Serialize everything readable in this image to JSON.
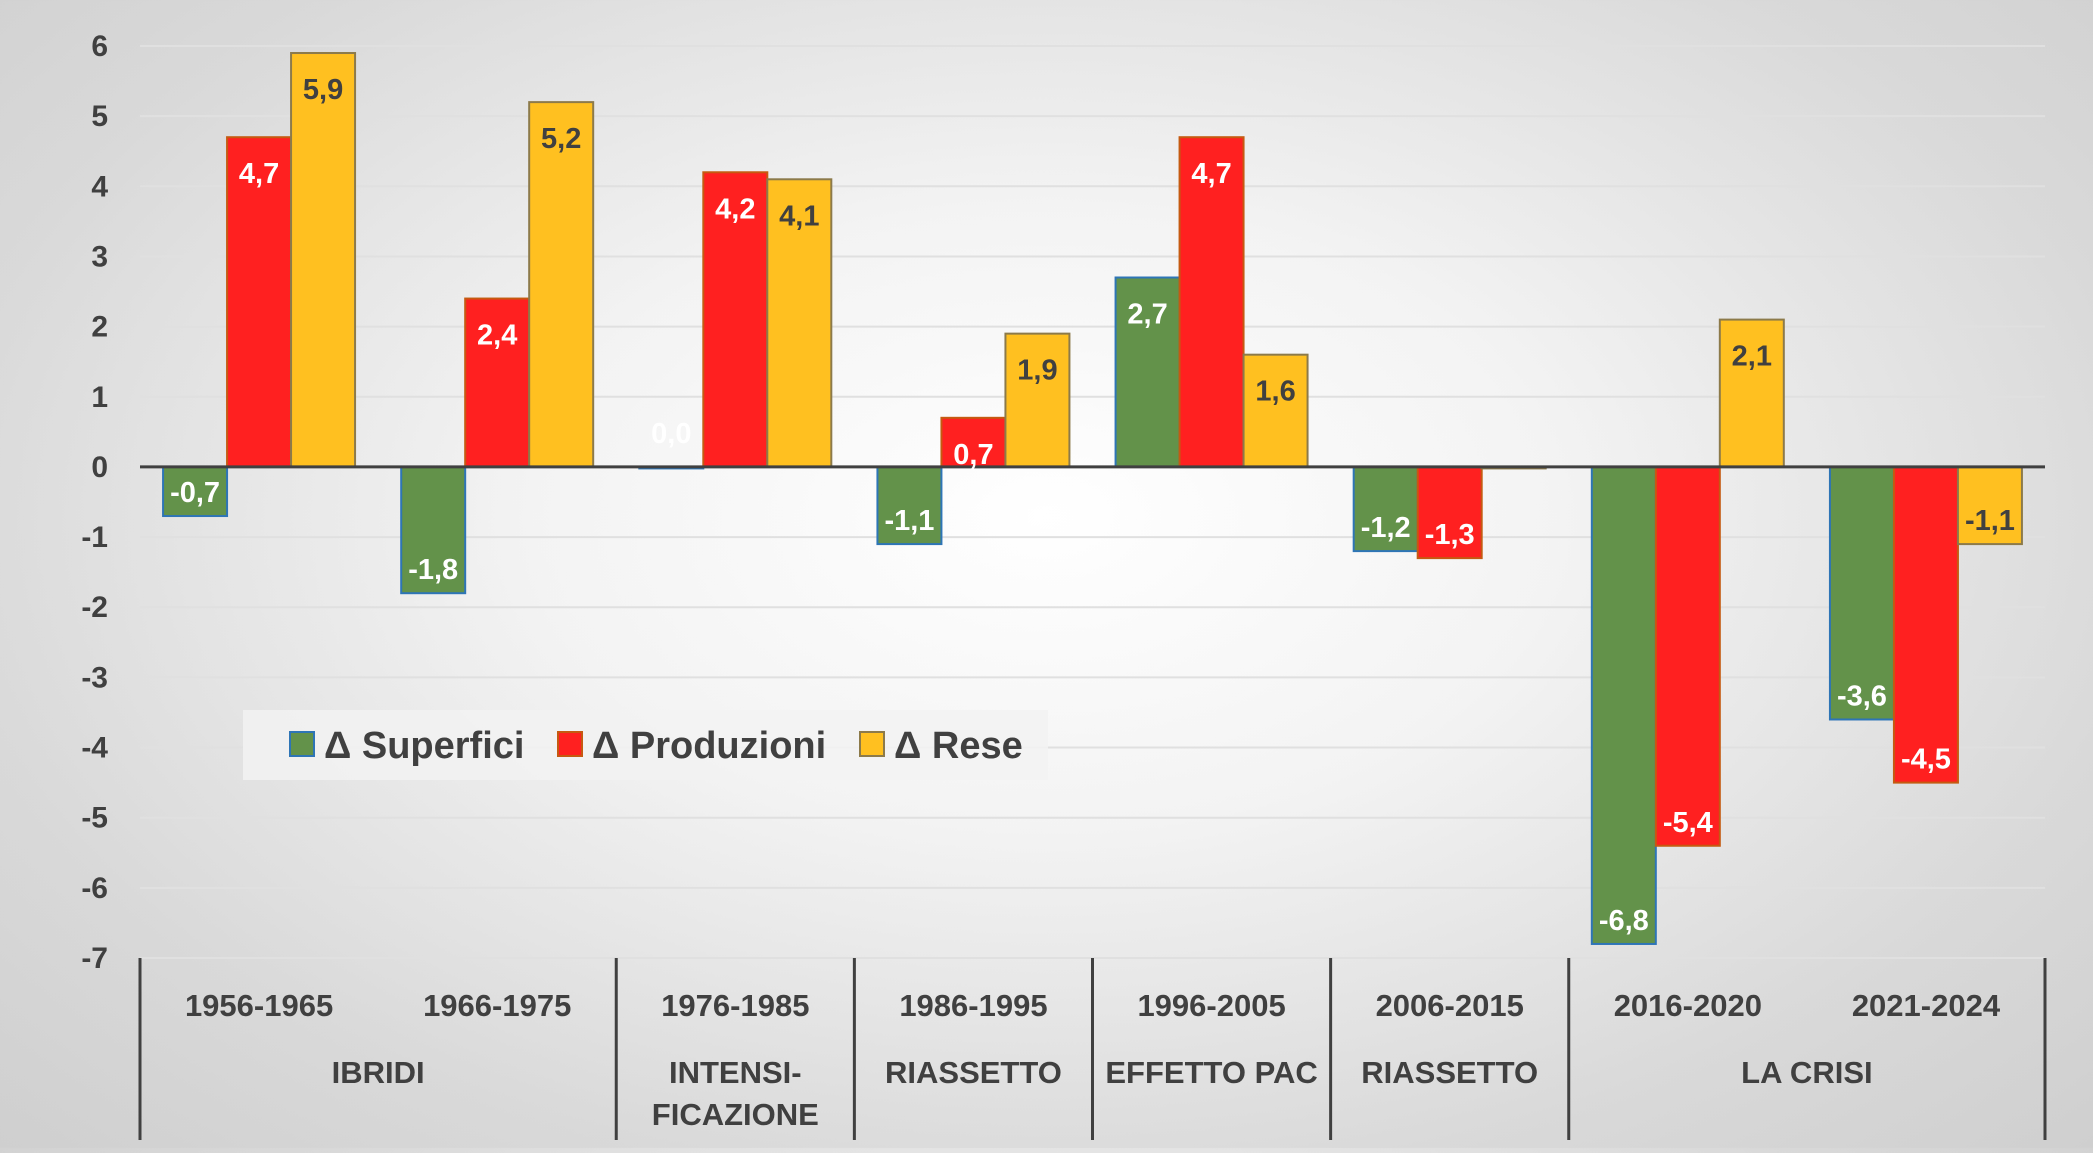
{
  "chart_data": {
    "type": "bar",
    "categories": [
      "1956-1965",
      "1966-1975",
      "1976-1985",
      "1986-1995",
      "1996-2005",
      "2006-2015",
      "2016-2020",
      "2021-2024"
    ],
    "groups": [
      {
        "label": "IBRIDI",
        "span": [
          0,
          1
        ]
      },
      {
        "label": "INTENSI-",
        "label2": "FICAZIONE",
        "span": [
          2,
          2
        ]
      },
      {
        "label": "RIASSETTO",
        "span": [
          3,
          3
        ]
      },
      {
        "label": "EFFETTO PAC",
        "span": [
          4,
          4
        ]
      },
      {
        "label": "RIASSETTO",
        "span": [
          5,
          5
        ]
      },
      {
        "label": "LA CRISI",
        "span": [
          6,
          7
        ]
      }
    ],
    "series": [
      {
        "name": "Δ Superfici",
        "color": "#63924a",
        "values": [
          -0.7,
          -1.8,
          0.0,
          -1.1,
          2.7,
          -1.2,
          -6.8,
          -3.6
        ],
        "labels": [
          "-0,7",
          "-1,8",
          "0,0",
          "-1,1",
          "2,7",
          "-1,2",
          "-6,8",
          "-3,6"
        ]
      },
      {
        "name": "Δ Produzioni",
        "color": "#ff2020",
        "values": [
          4.7,
          2.4,
          4.2,
          0.7,
          4.7,
          -1.3,
          -5.4,
          -4.5
        ],
        "labels": [
          "4,7",
          "2,4",
          "4,2",
          "0,7",
          "4,7",
          "-1,3",
          "-5,4",
          "-4,5"
        ]
      },
      {
        "name": "Δ Rese",
        "color": "#ffc020",
        "values": [
          5.9,
          5.2,
          4.1,
          1.9,
          1.6,
          0.0,
          2.1,
          -1.1
        ],
        "labels": [
          "5,9",
          "5,2",
          "4,1",
          "1,9",
          "1,6",
          "",
          "2,1",
          "-1,1"
        ]
      }
    ],
    "yticks": [
      "6",
      "5",
      "4",
      "3",
      "2",
      "1",
      "0",
      "-1",
      "-2",
      "-3",
      "-4",
      "-5",
      "-6",
      "-7"
    ],
    "ylim": [
      -7,
      6
    ],
    "grid": true,
    "legend_position": "lower-left-inside",
    "title": "",
    "xlabel": "",
    "ylabel": ""
  }
}
